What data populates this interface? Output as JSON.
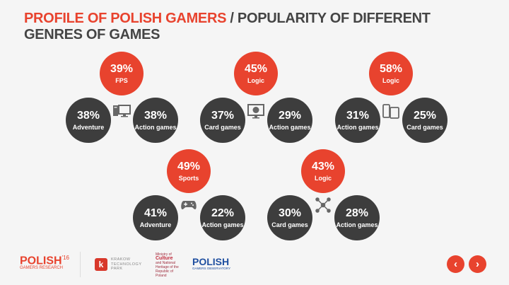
{
  "title": {
    "highlight": "PROFILE OF POLISH GAMERS",
    "rest": " / POPULARITY OF DIFFERENT GENRES OF GAMES"
  },
  "colors": {
    "accent": "#e8432e",
    "dark": "#3d3d3d",
    "text": "#444444"
  },
  "groups": [
    {
      "icon": "desktop-computer-icon",
      "top": {
        "pct": "39%",
        "label": "FPS"
      },
      "left": {
        "pct": "38%",
        "label": "Adventure"
      },
      "right": {
        "pct": "38%",
        "label": "Action games"
      }
    },
    {
      "icon": "web-monitor-icon",
      "top": {
        "pct": "45%",
        "label": "Logic"
      },
      "left": {
        "pct": "37%",
        "label": "Card games"
      },
      "right": {
        "pct": "29%",
        "label": "Action games"
      }
    },
    {
      "icon": "mobile-tablet-icon",
      "top": {
        "pct": "58%",
        "label": "Logic"
      },
      "left": {
        "pct": "31%",
        "label": "Action games"
      },
      "right": {
        "pct": "25%",
        "label": "Card games"
      }
    },
    {
      "icon": "gamepad-icon",
      "top": {
        "pct": "49%",
        "label": "Sports"
      },
      "left": {
        "pct": "41%",
        "label": "Adventure"
      },
      "right": {
        "pct": "22%",
        "label": "Action games"
      }
    },
    {
      "icon": "social-network-icon",
      "top": {
        "pct": "43%",
        "label": "Logic"
      },
      "left": {
        "pct": "30%",
        "label": "Card games"
      },
      "right": {
        "pct": "28%",
        "label": "Action games"
      }
    }
  ],
  "footer": {
    "logo1": {
      "main": "POLISH",
      "sup": "'16",
      "sub": "GAMERS RESEARCH"
    },
    "logo2": {
      "l1": "KRAKOW",
      "l2": "TECHNOLOGY",
      "l3": "PARK"
    },
    "logo3": {
      "l1": "Ministry of",
      "l2": "Culture",
      "l3": "and National Heritage of the Republic of Poland"
    },
    "logo4": {
      "main": "POLISH",
      "sub": "GAMERS OBSERVATORY"
    }
  },
  "nav": {
    "prev": "‹",
    "next": "›"
  }
}
